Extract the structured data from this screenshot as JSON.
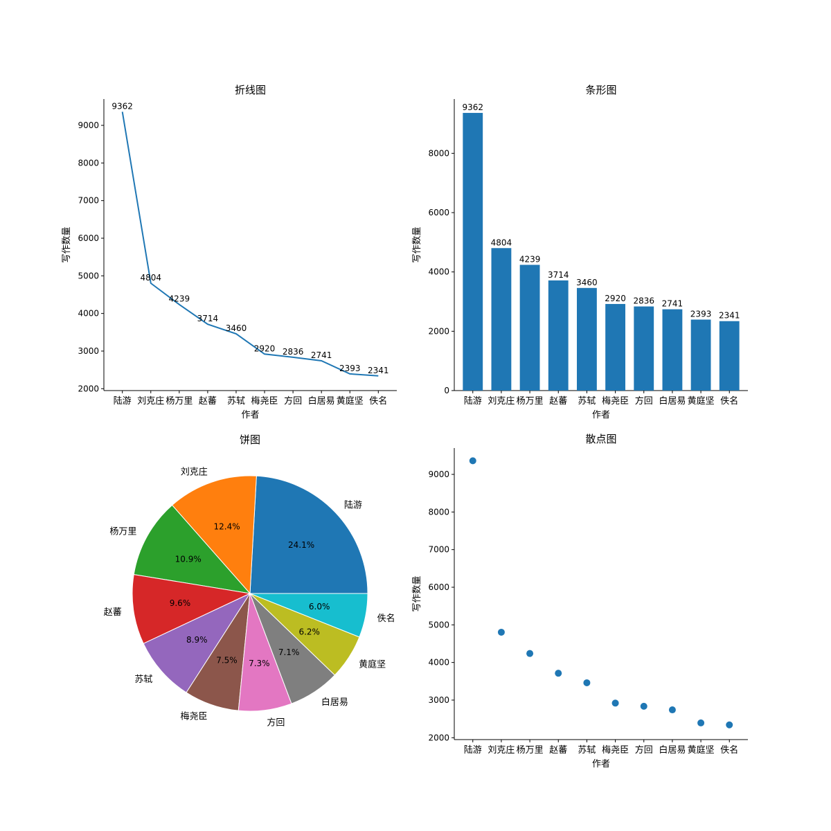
{
  "chart_data": [
    {
      "type": "line",
      "title": "折线图",
      "xlabel": "作者",
      "ylabel": "写作数量",
      "categories": [
        "陆游",
        "刘克庄",
        "杨万里",
        "赵蕃",
        "苏轼",
        "梅尧臣",
        "方回",
        "白居易",
        "黄庭坚",
        "佚名"
      ],
      "values": [
        9362,
        4804,
        4239,
        3714,
        3460,
        2920,
        2836,
        2741,
        2393,
        2341
      ],
      "yticks": [
        2000,
        3000,
        4000,
        5000,
        6000,
        7000,
        8000,
        9000
      ],
      "ylim": [
        1950,
        9700
      ],
      "color": "#1f77b4",
      "data_labels": true
    },
    {
      "type": "bar",
      "title": "条形图",
      "xlabel": "作者",
      "ylabel": "写作数量",
      "categories": [
        "陆游",
        "刘克庄",
        "杨万里",
        "赵蕃",
        "苏轼",
        "梅尧臣",
        "方回",
        "白居易",
        "黄庭坚",
        "佚名"
      ],
      "values": [
        9362,
        4804,
        4239,
        3714,
        3460,
        2920,
        2836,
        2741,
        2393,
        2341
      ],
      "yticks": [
        0,
        2000,
        4000,
        6000,
        8000
      ],
      "ylim": [
        0,
        9830
      ],
      "color": "#1f77b4",
      "data_labels": true
    },
    {
      "type": "pie",
      "title": "饼图",
      "labels": [
        "陆游",
        "刘克庄",
        "杨万里",
        "赵蕃",
        "苏轼",
        "梅尧臣",
        "方回",
        "白居易",
        "黄庭坚",
        "佚名"
      ],
      "values": [
        9362,
        4804,
        4239,
        3714,
        3460,
        2920,
        2836,
        2741,
        2393,
        2341
      ],
      "percent_labels": [
        "24.1%",
        "12.4%",
        "10.9%",
        "9.6%",
        "8.9%",
        "7.5%",
        "7.3%",
        "7.1%",
        "6.2%",
        "6.0%"
      ],
      "colors": [
        "#1f77b4",
        "#ff7f0e",
        "#2ca02c",
        "#d62728",
        "#9467bd",
        "#8c564b",
        "#e377c2",
        "#7f7f7f",
        "#bcbd22",
        "#17becf"
      ]
    },
    {
      "type": "scatter",
      "title": "散点图",
      "xlabel": "作者",
      "ylabel": "写作数量",
      "categories": [
        "陆游",
        "刘克庄",
        "杨万里",
        "赵蕃",
        "苏轼",
        "梅尧臣",
        "方回",
        "白居易",
        "黄庭坚",
        "佚名"
      ],
      "values": [
        9362,
        4804,
        4239,
        3714,
        3460,
        2920,
        2836,
        2741,
        2393,
        2341
      ],
      "yticks": [
        2000,
        3000,
        4000,
        5000,
        6000,
        7000,
        8000,
        9000
      ],
      "ylim": [
        1950,
        9700
      ],
      "color": "#1f77b4",
      "data_labels": false
    }
  ]
}
